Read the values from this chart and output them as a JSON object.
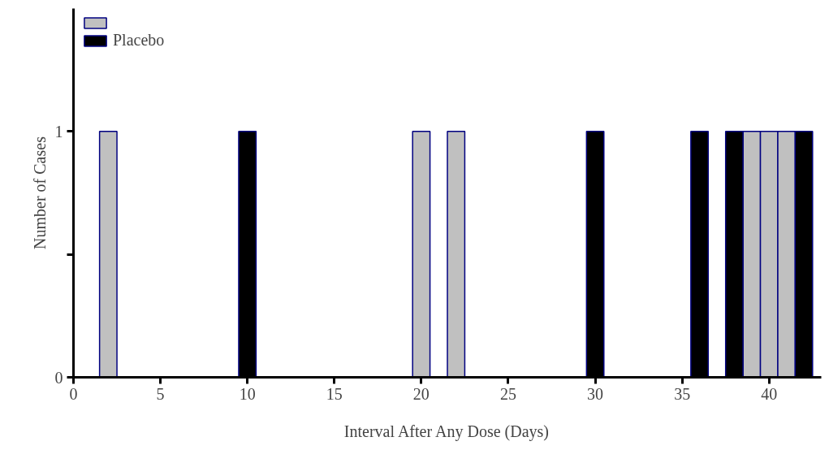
{
  "chart_data": {
    "type": "bar",
    "xlabel": "Interval After Any Dose (Days)",
    "ylabel": "Number of Cases",
    "series": [
      {
        "color": "#c0c0c0",
        "x": [
          2,
          20,
          22,
          39,
          40,
          41
        ],
        "values": [
          1,
          1,
          1,
          1,
          1,
          1
        ]
      },
      {
        "name": "Placebo",
        "color": "#000000",
        "x": [
          10,
          30,
          36,
          38,
          42
        ],
        "values": [
          1,
          1,
          1,
          1,
          1
        ]
      }
    ],
    "xlim": [
      0,
      43
    ],
    "xticks": [
      0,
      5,
      10,
      15,
      20,
      25,
      30,
      35,
      40
    ],
    "ylim": [
      0,
      1.5
    ],
    "yticks": [
      0,
      {
        "value": 0.5,
        "label": null
      },
      1
    ],
    "grid": false,
    "legend": "top left"
  }
}
